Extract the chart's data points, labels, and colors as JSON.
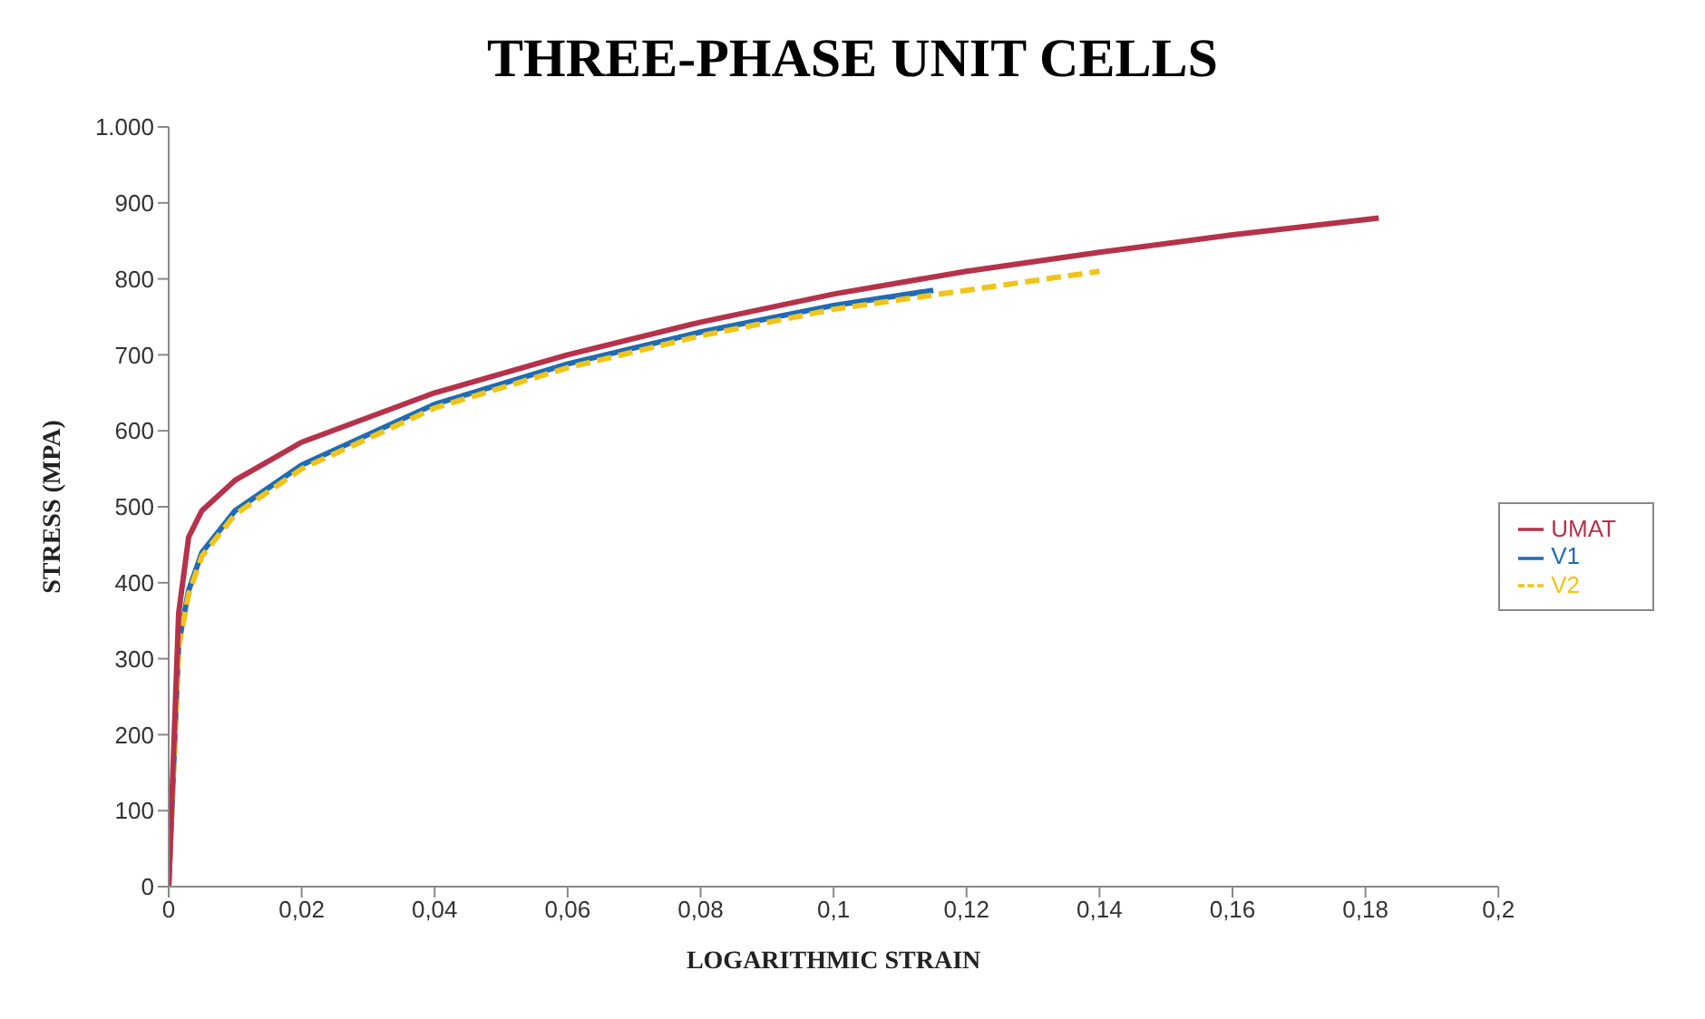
{
  "chart_data": {
    "type": "line",
    "title": "THREE-PHASE UNIT CELLS",
    "xlabel": "LOGARITHMIC STRAIN",
    "ylabel": "STRESS (MPA)",
    "xlim": [
      0,
      0.2
    ],
    "ylim": [
      0,
      1000
    ],
    "xticks": [
      0,
      {
        "value": 0.02,
        "label": "0,02"
      },
      {
        "value": 0.04,
        "label": "0,04"
      },
      {
        "value": 0.06,
        "label": "0,06"
      },
      {
        "value": 0.08,
        "label": "0,08"
      },
      {
        "value": 0.1,
        "label": "0,1"
      },
      {
        "value": 0.12,
        "label": "0,12"
      },
      {
        "value": 0.14,
        "label": "0,14"
      },
      {
        "value": 0.16,
        "label": "0,16"
      },
      {
        "value": 0.18,
        "label": "0,18"
      },
      {
        "value": 0.2,
        "label": "0,2"
      }
    ],
    "yticks": [
      0,
      100,
      200,
      300,
      400,
      500,
      600,
      700,
      800,
      900,
      {
        "value": 1000,
        "label": "1.000"
      }
    ],
    "grid": false,
    "legend": "right",
    "marker": "none",
    "series": [
      {
        "name": "V1",
        "color": "#1f6bb5",
        "line_style": "solid",
        "x": [
          0,
          0.0015,
          0.003,
          0.005,
          0.01,
          0.02,
          0.04,
          0.06,
          0.08,
          0.1,
          0.115
        ],
        "values": [
          0,
          320,
          390,
          440,
          495,
          555,
          635,
          688,
          730,
          765,
          785
        ]
      },
      {
        "name": "V2",
        "color": "#f0c419",
        "line_style": "dashed",
        "x": [
          0,
          0.0015,
          0.003,
          0.005,
          0.01,
          0.02,
          0.04,
          0.06,
          0.08,
          0.1,
          0.12,
          0.14
        ],
        "values": [
          0,
          315,
          385,
          435,
          490,
          550,
          630,
          683,
          725,
          760,
          785,
          810
        ]
      },
      {
        "name": "UMAT",
        "color": "#b5324a",
        "line_style": "solid",
        "x": [
          0,
          0.0015,
          0.003,
          0.005,
          0.01,
          0.02,
          0.04,
          0.06,
          0.08,
          0.1,
          0.12,
          0.14,
          0.16,
          0.182
        ],
        "values": [
          0,
          360,
          460,
          495,
          535,
          585,
          650,
          700,
          743,
          780,
          810,
          835,
          858,
          880
        ]
      }
    ]
  }
}
